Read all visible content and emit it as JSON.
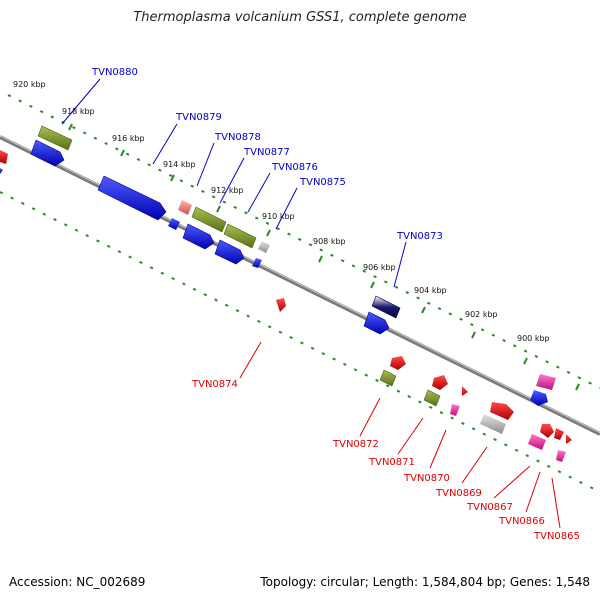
{
  "title": "Thermoplasma volcanium GSS1, complete genome",
  "footer": {
    "accession": "Accession: NC_002689",
    "topology": "Topology: circular; Length: 1,584,804 bp; Genes: 1,548"
  },
  "colors": {
    "plus_label": "#0000cc",
    "minus_label": "#dd0000",
    "tick": "#2a8a2a",
    "backbone": "#777777",
    "blue": "#1e2ed8",
    "olive": "#7f9b2c",
    "red": "#e60000",
    "pink": "#e8269a",
    "lightred": "#f08080",
    "grey": "#bdbdbd",
    "navy": "#1a1a6e"
  },
  "ticks": [
    "920 kbp",
    "918 kbp",
    "916 kbp",
    "914 kbp",
    "912 kbp",
    "910 kbp",
    "908 kbp",
    "906 kbp",
    "904 kbp",
    "902 kbp",
    "900 kbp"
  ],
  "plus_genes": [
    "TVN0880",
    "TVN0879",
    "TVN0878",
    "TVN0877",
    "TVN0876",
    "TVN0875",
    "TVN0873"
  ],
  "minus_genes": [
    "TVN0874",
    "TVN0872",
    "TVN0871",
    "TVN0870",
    "TVN0869",
    "TVN0867",
    "TVN0866",
    "TVN0865"
  ]
}
